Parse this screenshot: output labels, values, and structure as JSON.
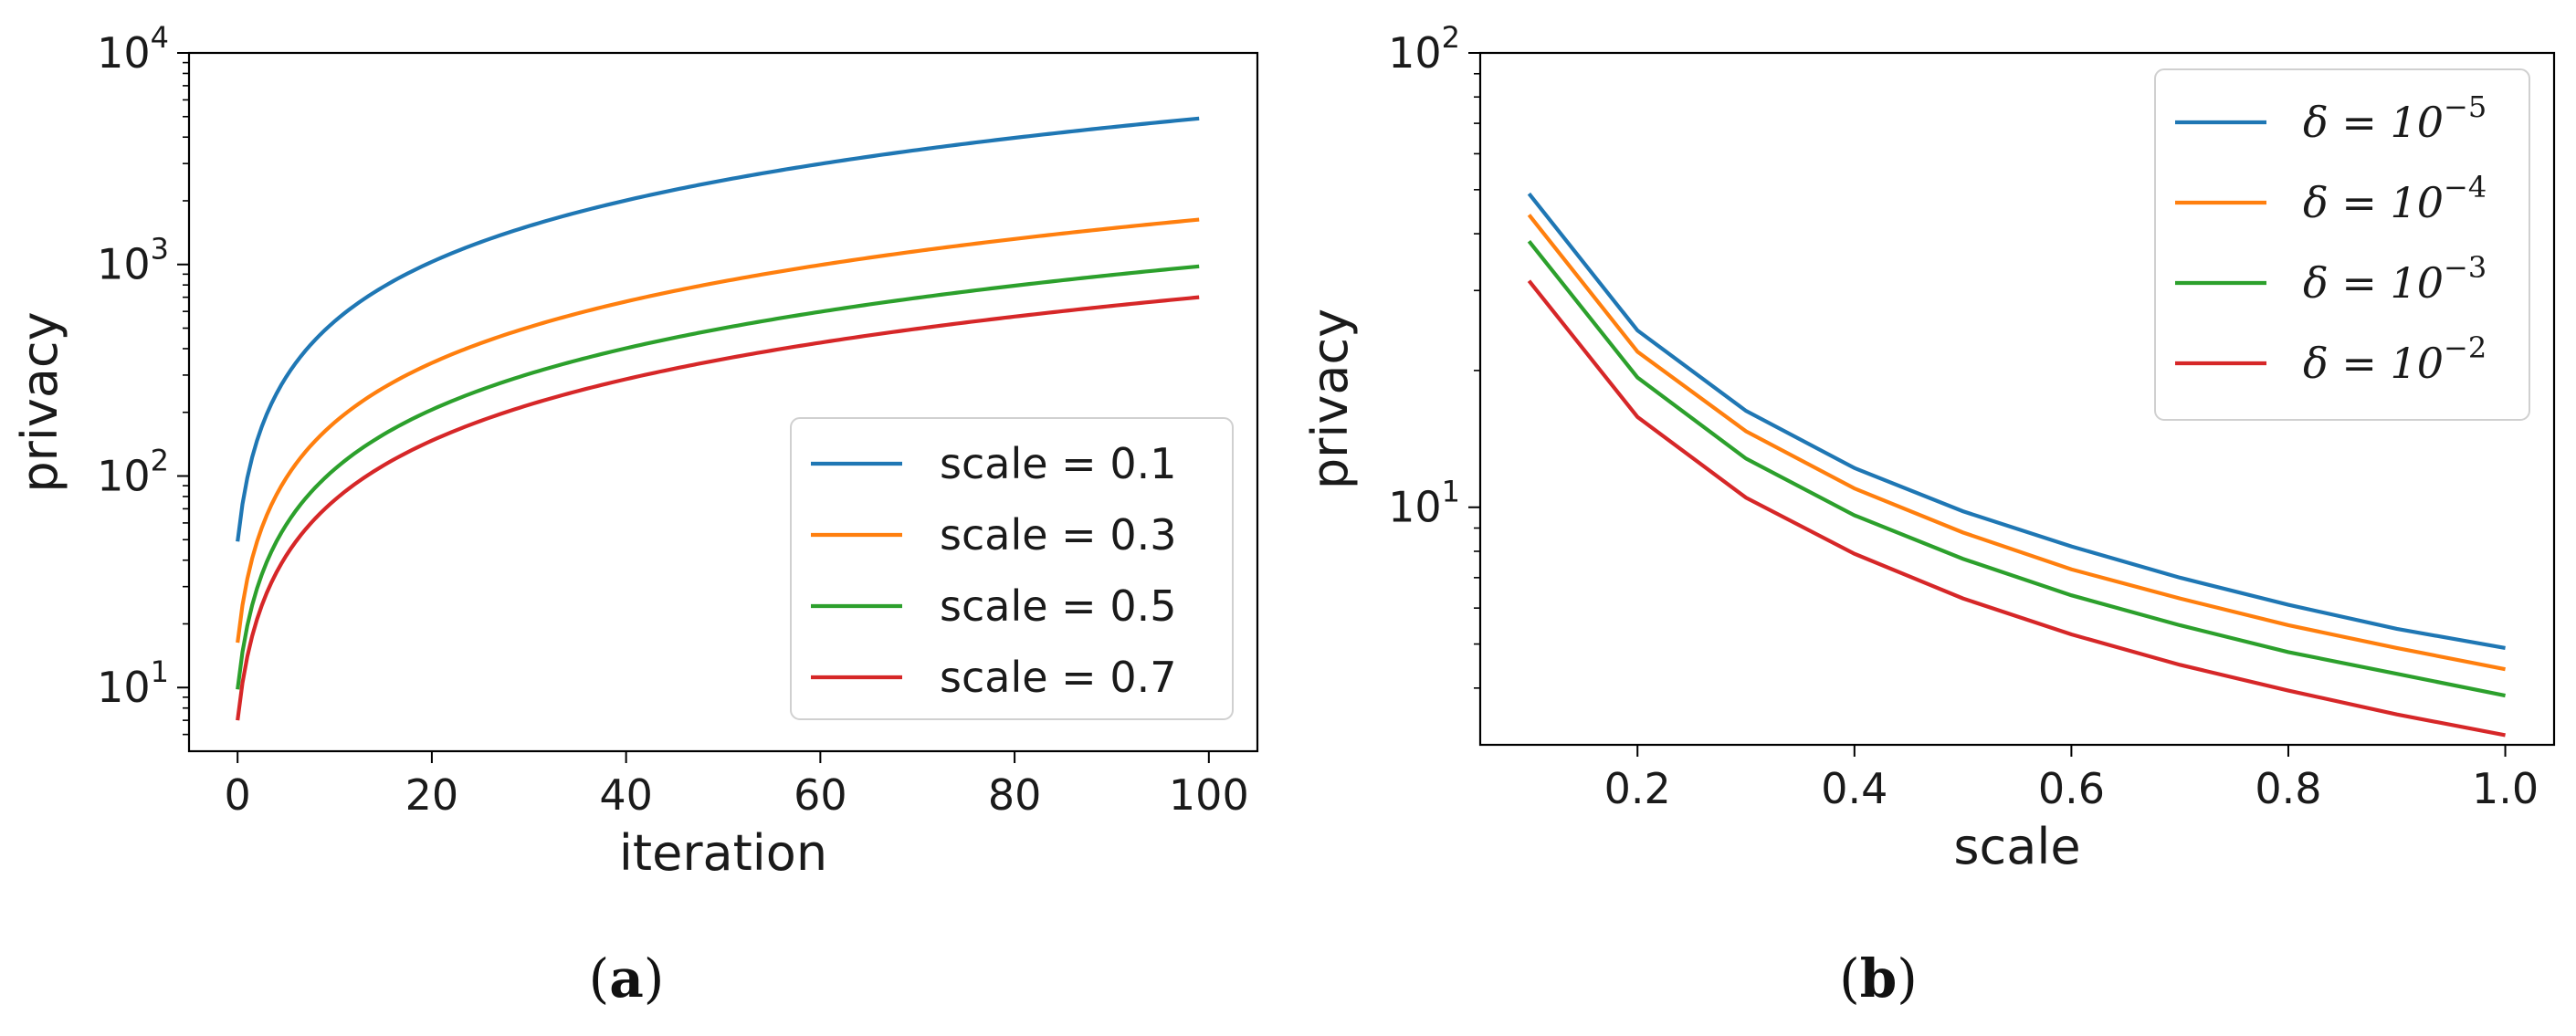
{
  "chart_data": [
    {
      "id": "a",
      "type": "line",
      "caption_letter": "a",
      "xlabel": "iteration",
      "ylabel": "privacy",
      "yscale": "log",
      "xlim": [
        -5,
        105
      ],
      "ylim": [
        5,
        10000
      ],
      "xticks": [
        0,
        20,
        40,
        60,
        80,
        100
      ],
      "yticks": [
        {
          "base": "10",
          "exp": "1",
          "value": 10
        },
        {
          "base": "10",
          "exp": "2",
          "value": 100
        },
        {
          "base": "10",
          "exp": "3",
          "value": 1000
        },
        {
          "base": "10",
          "exp": "4",
          "value": 10000
        }
      ],
      "legend_position": "lower-right",
      "series": [
        {
          "name": "scale = 0.1",
          "color": "#1f77b4",
          "start": 49,
          "end": 4900
        },
        {
          "name": "scale = 0.3",
          "color": "#ff7f0e",
          "start": 16.3,
          "end": 1630
        },
        {
          "name": "scale = 0.5",
          "color": "#2ca02c",
          "start": 9.8,
          "end": 980
        },
        {
          "name": "scale = 0.7",
          "color": "#d62728",
          "start": 7.0,
          "end": 700
        }
      ],
      "x_range": [
        0,
        99
      ]
    },
    {
      "id": "b",
      "type": "line",
      "caption_letter": "b",
      "xlabel": "scale",
      "ylabel": "privacy",
      "yscale": "log",
      "xlim": [
        0.055,
        1.045
      ],
      "ylim": [
        3.0,
        100
      ],
      "xticks": [
        0.2,
        0.4,
        0.6,
        0.8,
        1.0
      ],
      "xtick_labels": [
        "0.2",
        "0.4",
        "0.6",
        "0.8",
        "1.0"
      ],
      "yticks": [
        {
          "base": "10",
          "exp": "1",
          "value": 10
        },
        {
          "base": "10",
          "exp": "2",
          "value": 100
        }
      ],
      "legend_position": "top-right",
      "x": [
        0.1,
        0.2,
        0.3,
        0.4,
        0.5,
        0.6,
        0.7,
        0.8,
        0.9,
        1.0
      ],
      "series": [
        {
          "name_prefix": "δ = 10",
          "exp": "−5",
          "color": "#1f77b4",
          "values": [
            49,
            24.5,
            16.3,
            12.2,
            9.8,
            8.2,
            7.0,
            6.1,
            5.4,
            4.9
          ]
        },
        {
          "name_prefix": "δ = 10",
          "exp": "−4",
          "color": "#ff7f0e",
          "values": [
            44,
            22,
            14.7,
            11.0,
            8.8,
            7.3,
            6.3,
            5.5,
            4.9,
            4.4
          ]
        },
        {
          "name_prefix": "δ = 10",
          "exp": "−3",
          "color": "#2ca02c",
          "values": [
            38.5,
            19.3,
            12.8,
            9.6,
            7.7,
            6.4,
            5.5,
            4.8,
            4.3,
            3.85
          ]
        },
        {
          "name_prefix": "δ = 10",
          "exp": "−2",
          "color": "#d62728",
          "values": [
            31.5,
            15.8,
            10.5,
            7.9,
            6.3,
            5.25,
            4.5,
            3.95,
            3.5,
            3.15
          ]
        }
      ]
    }
  ]
}
